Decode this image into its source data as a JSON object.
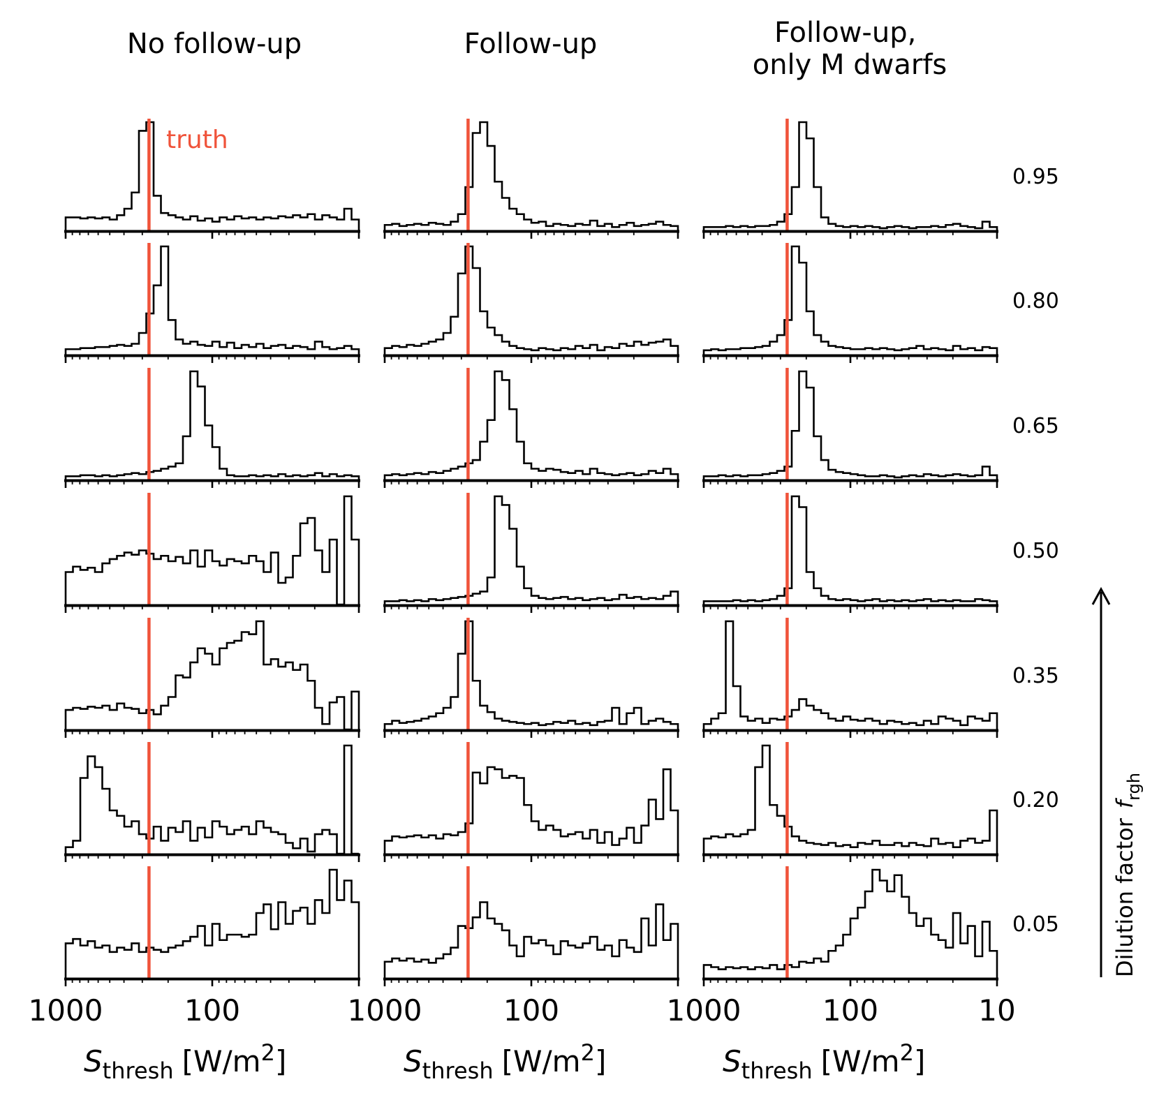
{
  "chart_data": {
    "type": "histogram-grid",
    "columns": [
      "No follow-up",
      "Follow-up",
      "Follow-up,\nonly M dwarfs"
    ],
    "rows": [
      "0.95",
      "0.80",
      "0.65",
      "0.50",
      "0.35",
      "0.20",
      "0.05"
    ],
    "truth_label": "truth",
    "truth_value": 270,
    "truth_color": "#f0533a",
    "xlabel": {
      "base": "S",
      "sub": "thresh",
      "unit": "[W/m",
      "sup": "2",
      "close": "]"
    },
    "xlim": [
      1000,
      10
    ],
    "xscale": "log",
    "xticks": [
      "1000",
      "100",
      "10"
    ],
    "ylabel": "Dilution factor",
    "ylabel_symbol": "f",
    "ylabel_sub": "rgh",
    "bins": 40,
    "histograms": [
      [
        [
          12,
          12,
          11,
          12,
          11,
          12,
          10,
          14,
          20,
          35,
          92,
          100,
          32,
          16,
          14,
          12,
          10,
          13,
          9,
          11,
          8,
          12,
          10,
          13,
          11,
          12,
          10,
          12,
          11,
          13,
          12,
          14,
          12,
          15,
          10,
          14,
          12,
          10,
          20,
          10
        ],
        [
          5,
          5,
          6,
          6,
          7,
          7,
          8,
          9,
          8,
          10,
          20,
          38,
          64,
          100,
          32,
          14,
          10,
          12,
          9,
          8,
          12,
          7,
          11,
          6,
          9,
          7,
          10,
          6,
          8,
          9,
          6,
          8,
          7,
          5,
          12,
          7,
          5,
          6,
          8,
          5
        ],
        [
          3,
          3,
          4,
          4,
          3,
          4,
          3,
          4,
          5,
          6,
          5,
          7,
          8,
          10,
          12,
          15,
          40,
          100,
          86,
          50,
          30,
          10,
          4,
          3,
          3,
          4,
          3,
          4,
          3,
          5,
          3,
          4,
          3,
          4,
          6,
          3,
          5,
          3,
          4,
          3
        ],
        [
          30,
          35,
          32,
          34,
          30,
          38,
          42,
          45,
          48,
          46,
          50,
          47,
          42,
          45,
          40,
          44,
          38,
          50,
          35,
          50,
          40,
          36,
          42,
          40,
          38,
          45,
          40,
          30,
          48,
          20,
          25,
          45,
          75,
          80,
          50,
          30,
          60,
          0,
          100,
          60
        ],
        [
          18,
          20,
          19,
          21,
          20,
          22,
          18,
          24,
          20,
          19,
          15,
          18,
          14,
          22,
          30,
          50,
          48,
          62,
          75,
          70,
          60,
          75,
          80,
          82,
          90,
          88,
          100,
          60,
          65,
          58,
          62,
          55,
          60,
          45,
          20,
          5,
          25,
          30,
          0,
          35
        ],
        [
          6,
          12,
          70,
          90,
          80,
          60,
          40,
          35,
          25,
          30,
          18,
          14,
          25,
          12,
          24,
          20,
          30,
          12,
          24,
          15,
          30,
          25,
          18,
          22,
          25,
          18,
          30,
          24,
          20,
          18,
          10,
          5,
          14,
          2,
          18,
          22,
          18,
          0,
          100,
          0
        ],
        [
          32,
          36,
          30,
          34,
          28,
          30,
          24,
          28,
          26,
          32,
          24,
          28,
          26,
          24,
          28,
          30,
          34,
          38,
          48,
          30,
          50,
          35,
          40,
          40,
          38,
          40,
          60,
          68,
          45,
          70,
          50,
          62,
          65,
          50,
          72,
          60,
          100,
          72,
          90,
          70
        ]
      ],
      [
        [
          5,
          6,
          4,
          5,
          6,
          5,
          7,
          6,
          5,
          8,
          15,
          40,
          90,
          100,
          78,
          45,
          30,
          20,
          15,
          10,
          7,
          8,
          4,
          6,
          5,
          4,
          6,
          5,
          9,
          4,
          6,
          3,
          5,
          7,
          4,
          5,
          6,
          8,
          5,
          4
        ],
        [
          6,
          8,
          7,
          9,
          8,
          10,
          12,
          14,
          20,
          35,
          75,
          100,
          80,
          40,
          25,
          18,
          12,
          8,
          6,
          5,
          4,
          6,
          5,
          4,
          6,
          5,
          8,
          6,
          9,
          4,
          7,
          6,
          10,
          8,
          12,
          9,
          11,
          12,
          14,
          8
        ],
        [
          4,
          5,
          4,
          5,
          6,
          5,
          7,
          6,
          8,
          10,
          12,
          15,
          18,
          35,
          55,
          100,
          92,
          65,
          35,
          15,
          10,
          8,
          10,
          9,
          7,
          6,
          8,
          5,
          10,
          6,
          5,
          4,
          5,
          6,
          4,
          5,
          8,
          6,
          10,
          5
        ],
        [
          3,
          3,
          4,
          3,
          4,
          3,
          5,
          4,
          5,
          6,
          7,
          8,
          10,
          12,
          25,
          100,
          92,
          70,
          35,
          15,
          8,
          6,
          5,
          6,
          7,
          5,
          6,
          4,
          5,
          6,
          4,
          5,
          9,
          6,
          7,
          5,
          6,
          5,
          8,
          12
        ],
        [
          5,
          8,
          6,
          7,
          8,
          10,
          12,
          15,
          20,
          30,
          70,
          100,
          45,
          22,
          16,
          10,
          8,
          7,
          6,
          5,
          6,
          4,
          5,
          7,
          6,
          8,
          5,
          6,
          4,
          7,
          8,
          20,
          5,
          15,
          20,
          5,
          8,
          10,
          7,
          5
        ],
        [
          12,
          16,
          15,
          16,
          17,
          15,
          17,
          14,
          18,
          17,
          20,
          28,
          75,
          65,
          80,
          78,
          70,
          72,
          70,
          45,
          30,
          22,
          26,
          22,
          16,
          18,
          20,
          14,
          22,
          10,
          20,
          8,
          14,
          24,
          10,
          26,
          50,
          32,
          78,
          40
        ],
        [
          15,
          18,
          16,
          18,
          15,
          17,
          14,
          18,
          22,
          28,
          48,
          46,
          56,
          70,
          55,
          50,
          44,
          30,
          20,
          38,
          32,
          35,
          30,
          22,
          34,
          30,
          28,
          32,
          38,
          26,
          30,
          20,
          35,
          28,
          24,
          55,
          30,
          68,
          35,
          50
        ]
      ],
      [
        [
          3,
          3,
          3,
          4,
          3,
          4,
          3,
          4,
          4,
          5,
          8,
          15,
          40,
          100,
          85,
          40,
          12,
          6,
          4,
          3,
          4,
          3,
          4,
          3,
          2,
          3,
          4,
          3,
          2,
          3,
          3,
          4,
          3,
          5,
          6,
          4,
          3,
          2,
          8,
          3
        ],
        [
          4,
          5,
          4,
          5,
          5,
          6,
          6,
          7,
          8,
          12,
          18,
          32,
          100,
          85,
          40,
          18,
          12,
          8,
          7,
          6,
          5,
          5,
          6,
          5,
          6,
          5,
          4,
          5,
          6,
          8,
          5,
          6,
          5,
          4,
          8,
          5,
          6,
          4,
          7,
          6
        ],
        [
          3,
          3,
          4,
          3,
          4,
          3,
          4,
          4,
          5,
          6,
          8,
          12,
          45,
          100,
          85,
          40,
          18,
          9,
          7,
          6,
          5,
          4,
          3,
          3,
          4,
          3,
          2,
          3,
          4,
          3,
          5,
          4,
          3,
          4,
          5,
          4,
          3,
          4,
          12,
          4
        ],
        [
          3,
          3,
          3,
          3,
          4,
          3,
          4,
          3,
          4,
          5,
          8,
          15,
          100,
          90,
          30,
          15,
          8,
          5,
          4,
          5,
          4,
          3,
          4,
          5,
          3,
          4,
          3,
          4,
          3,
          4,
          5,
          3,
          4,
          3,
          4,
          3,
          3,
          5,
          4,
          3
        ],
        [
          5,
          10,
          15,
          100,
          40,
          12,
          8,
          10,
          6,
          10,
          9,
          12,
          18,
          28,
          22,
          18,
          15,
          10,
          8,
          12,
          9,
          8,
          10,
          8,
          5,
          8,
          7,
          5,
          6,
          4,
          8,
          5,
          12,
          10,
          8,
          4,
          12,
          10,
          8,
          15
        ],
        [
          14,
          16,
          15,
          18,
          16,
          18,
          22,
          80,
          100,
          45,
          35,
          25,
          16,
          12,
          10,
          9,
          8,
          10,
          7,
          8,
          6,
          10,
          9,
          12,
          8,
          8,
          10,
          7,
          10,
          8,
          7,
          14,
          9,
          10,
          6,
          12,
          14,
          10,
          12,
          40
        ],
        [
          12,
          10,
          8,
          10,
          9,
          10,
          8,
          10,
          9,
          12,
          8,
          12,
          10,
          15,
          14,
          18,
          15,
          25,
          30,
          40,
          55,
          65,
          80,
          100,
          90,
          80,
          95,
          75,
          60,
          48,
          55,
          40,
          35,
          28,
          60,
          32,
          48,
          20,
          52,
          25
        ]
      ]
    ]
  }
}
